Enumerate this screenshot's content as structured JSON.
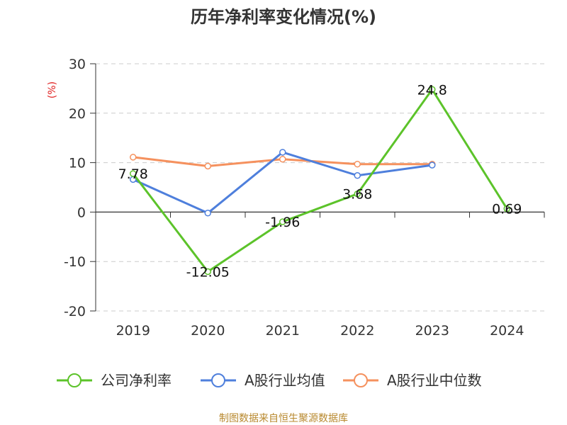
{
  "chart_data": {
    "type": "line",
    "title": "历年净利率变化情况(%)",
    "ylabel": "(%)",
    "xlabel": "",
    "categories": [
      "2019",
      "2020",
      "2021",
      "2022",
      "2023",
      "2024"
    ],
    "ylim": [
      -20,
      30
    ],
    "yticks": [
      30,
      20,
      10,
      0,
      -10,
      -20
    ],
    "grid": true,
    "legend_position": "bottom",
    "series": [
      {
        "name": "公司净利率",
        "color": "#5cc32a",
        "values": [
          7.78,
          -12.05,
          -1.96,
          3.68,
          24.8,
          0.69
        ],
        "labels": [
          "7.78",
          "-12.05",
          "-1.96",
          "3.68",
          "24.8",
          "0.69"
        ]
      },
      {
        "name": "A股行业均值",
        "color": "#4e7fdc",
        "values": [
          6.6,
          -0.2,
          12.1,
          7.4,
          9.5,
          null
        ]
      },
      {
        "name": "A股行业中位数",
        "color": "#f5915e",
        "values": [
          11.1,
          9.3,
          10.7,
          9.7,
          9.7,
          null
        ]
      }
    ]
  },
  "source_note": "制图数据来自恒生聚源数据库",
  "colors": {
    "title": "#333333",
    "axis": "#333333",
    "grid": "#cccccc",
    "ylabel": "#e02020",
    "source": "#b8892f"
  }
}
